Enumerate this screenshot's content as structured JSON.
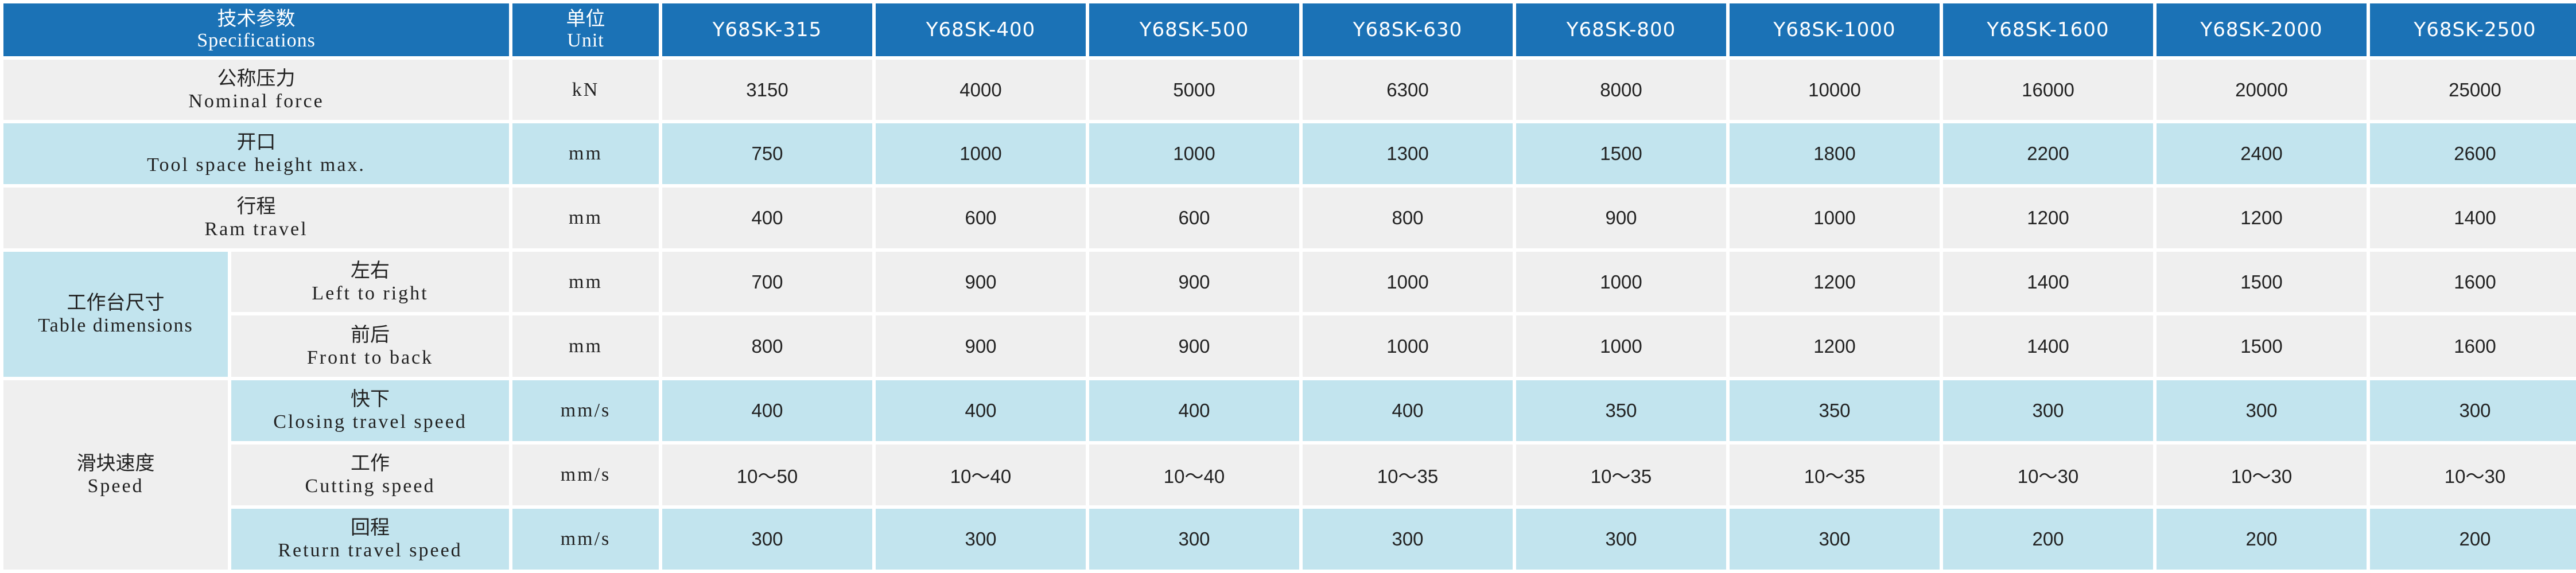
{
  "header": {
    "spec_zh": "技术参数",
    "spec_en": "Specifications",
    "unit_zh": "单位",
    "unit_en": "Unit",
    "models": [
      "Y68SK-315",
      "Y68SK-400",
      "Y68SK-500",
      "Y68SK-630",
      "Y68SK-800",
      "Y68SK-1000",
      "Y68SK-1600",
      "Y68SK-2000",
      "Y68SK-2500"
    ]
  },
  "rows": {
    "nominal_force": {
      "zh": "公称压力",
      "en": "Nominal force",
      "unit": "kN",
      "values": [
        "3150",
        "4000",
        "5000",
        "6300",
        "8000",
        "10000",
        "16000",
        "20000",
        "25000"
      ]
    },
    "tool_space": {
      "zh": "开口",
      "en": "Tool space height max.",
      "unit": "mm",
      "values": [
        "750",
        "1000",
        "1000",
        "1300",
        "1500",
        "1800",
        "2200",
        "2400",
        "2600"
      ]
    },
    "ram_travel": {
      "zh": "行程",
      "en": "Ram travel",
      "unit": "mm",
      "values": [
        "400",
        "600",
        "600",
        "800",
        "900",
        "1000",
        "1200",
        "1200",
        "1400"
      ]
    }
  },
  "table_dims": {
    "zh": "工作台尺寸",
    "en": "Table dimensions",
    "left_right": {
      "zh": "左右",
      "en": "Left to right",
      "unit": "mm",
      "values": [
        "700",
        "900",
        "900",
        "1000",
        "1000",
        "1200",
        "1400",
        "1500",
        "1600"
      ]
    },
    "front_back": {
      "zh": "前后",
      "en": "Front to back",
      "unit": "mm",
      "values": [
        "800",
        "900",
        "900",
        "1000",
        "1000",
        "1200",
        "1400",
        "1500",
        "1600"
      ]
    }
  },
  "speed": {
    "zh": "滑块速度",
    "en": "Speed",
    "closing": {
      "zh": "快下",
      "en": "Closing travel speed",
      "unit": "mm/s",
      "values": [
        "400",
        "400",
        "400",
        "400",
        "350",
        "350",
        "300",
        "300",
        "300"
      ]
    },
    "cutting": {
      "zh": "工作",
      "en": "Cutting speed",
      "unit": "mm/s",
      "values": [
        "10～50",
        "10～40",
        "10～40",
        "10～35",
        "10～35",
        "10～35",
        "10～30",
        "10～30",
        "10～30"
      ]
    },
    "return": {
      "zh": "回程",
      "en": "Return travel speed",
      "unit": "mm/s",
      "values": [
        "300",
        "300",
        "300",
        "300",
        "300",
        "300",
        "200",
        "200",
        "200"
      ]
    }
  },
  "colors": {
    "header": "#1b72b6",
    "row_gray": "#efefef",
    "row_blue": "#c2e4ee"
  }
}
